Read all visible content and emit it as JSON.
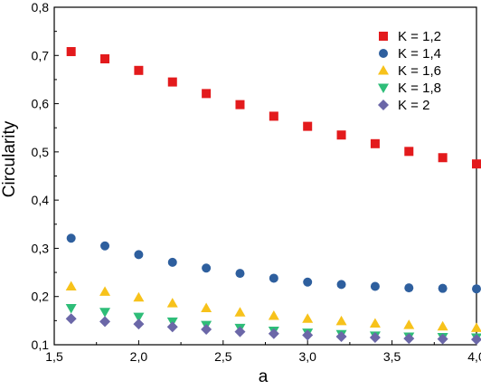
{
  "chart_data": {
    "type": "scatter",
    "title": "",
    "xlabel": "a",
    "ylabel": "Circularity",
    "xlim": [
      1.5,
      4.0
    ],
    "ylim": [
      0.1,
      0.8
    ],
    "x_ticks": [
      "1,5",
      "2,0",
      "2,5",
      "3,0",
      "3,5",
      "4,0"
    ],
    "y_ticks": [
      "0,1",
      "0,2",
      "0,3",
      "0,4",
      "0,5",
      "0,6",
      "0,7",
      "0,8"
    ],
    "grid": false,
    "legend_position": "top-right",
    "x": [
      1.6,
      1.8,
      2.0,
      2.2,
      2.4,
      2.6,
      2.8,
      3.0,
      3.2,
      3.4,
      3.6,
      3.8,
      4.0
    ],
    "series": [
      {
        "name": "K = 1,2",
        "marker": "square",
        "color": "#e31a1c",
        "values": [
          0.708,
          0.693,
          0.669,
          0.645,
          0.621,
          0.598,
          0.574,
          0.553,
          0.535,
          0.517,
          0.501,
          0.488,
          0.475
        ]
      },
      {
        "name": "K = 1,4",
        "marker": "circle",
        "color": "#2e5f9e",
        "values": [
          0.321,
          0.305,
          0.287,
          0.271,
          0.259,
          0.248,
          0.238,
          0.23,
          0.225,
          0.221,
          0.218,
          0.217,
          0.216
        ]
      },
      {
        "name": "K = 1,6",
        "marker": "triangle-up",
        "color": "#f7c21b",
        "values": [
          0.221,
          0.21,
          0.198,
          0.186,
          0.176,
          0.167,
          0.16,
          0.154,
          0.149,
          0.144,
          0.141,
          0.138,
          0.135
        ]
      },
      {
        "name": "K = 1,8",
        "marker": "triangle-down",
        "color": "#2ebd78",
        "values": [
          0.176,
          0.168,
          0.158,
          0.148,
          0.141,
          0.135,
          0.129,
          0.125,
          0.122,
          0.119,
          0.117,
          0.116,
          0.115
        ]
      },
      {
        "name": "K = 2",
        "marker": "diamond",
        "color": "#6b67a8",
        "values": [
          0.154,
          0.148,
          0.143,
          0.137,
          0.132,
          0.127,
          0.123,
          0.12,
          0.117,
          0.115,
          0.113,
          0.112,
          0.111
        ]
      }
    ]
  }
}
